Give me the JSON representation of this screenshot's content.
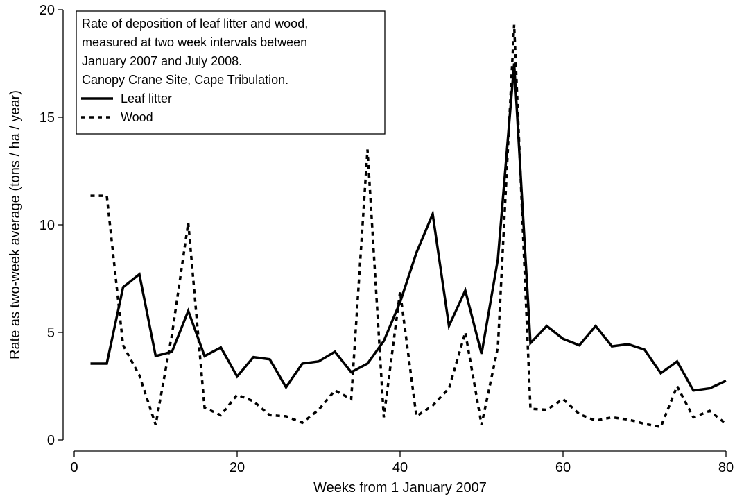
{
  "chart_data": {
    "type": "line",
    "title_lines": [
      "Rate of deposition of leaf litter and wood,",
      "measured at two week intervals between",
      "January 2007 and July 2008.",
      "Canopy Crane Site, Cape Tribulation."
    ],
    "x_label": "Weeks from 1 January 2007",
    "y_label": "Rate as two-week average  (tons / ha / year)",
    "x": [
      2,
      4,
      6,
      8,
      10,
      12,
      14,
      16,
      18,
      20,
      22,
      24,
      26,
      28,
      30,
      32,
      34,
      36,
      38,
      40,
      42,
      44,
      46,
      48,
      50,
      52,
      54,
      56,
      58,
      60,
      62,
      64,
      66,
      68,
      70,
      72,
      74,
      76,
      78,
      80
    ],
    "series": [
      {
        "name": "Leaf litter",
        "color": "#000000",
        "dash": "solid",
        "values": [
          3.55,
          3.55,
          7.1,
          7.7,
          3.9,
          4.1,
          6.0,
          3.9,
          4.3,
          2.95,
          3.85,
          3.75,
          2.45,
          3.55,
          3.65,
          4.1,
          3.15,
          3.55,
          4.6,
          6.4,
          8.7,
          10.5,
          5.3,
          6.95,
          4.0,
          8.4,
          17.5,
          4.5,
          5.3,
          4.7,
          4.4,
          5.3,
          4.35,
          4.45,
          4.2,
          3.1,
          3.65,
          2.3,
          2.4,
          2.75
        ]
      },
      {
        "name": "Wood",
        "color": "#000000",
        "dash": "dashed",
        "values": [
          11.35,
          11.35,
          4.4,
          3.0,
          0.7,
          4.9,
          10.1,
          1.5,
          1.15,
          2.1,
          1.8,
          1.15,
          1.1,
          0.8,
          1.4,
          2.3,
          1.9,
          13.5,
          1.05,
          6.9,
          1.1,
          1.6,
          2.4,
          5.0,
          0.7,
          4.3,
          19.3,
          1.45,
          1.4,
          1.9,
          1.2,
          0.9,
          1.05,
          0.95,
          0.75,
          0.6,
          2.5,
          1.05,
          1.35,
          0.75
        ]
      }
    ],
    "xlim": [
      0,
      80
    ],
    "xticks": [
      0,
      20,
      40,
      60,
      80
    ],
    "ylim": [
      0,
      20
    ],
    "yticks": [
      0,
      5,
      10,
      15,
      20
    ],
    "legend": "top-left"
  }
}
